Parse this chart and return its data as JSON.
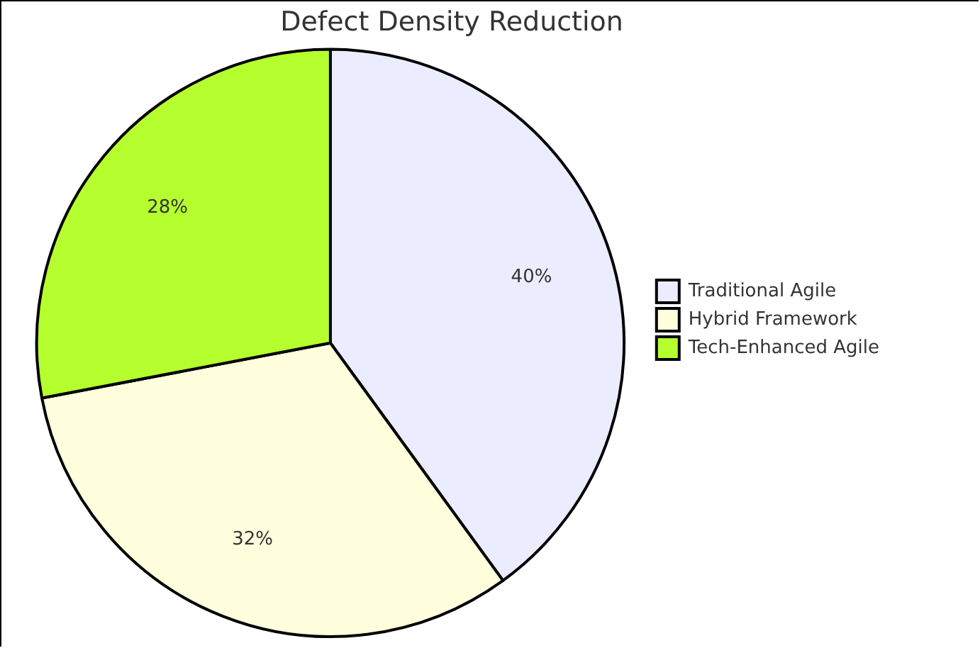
{
  "chart_data": {
    "type": "pie",
    "title": "Defect Density Reduction",
    "categories": [
      "Traditional Agile",
      "Hybrid Framework",
      "Tech-Enhanced Agile"
    ],
    "values": [
      40,
      32,
      28
    ],
    "value_labels": [
      "40%",
      "32%",
      "28%"
    ],
    "colors": [
      "#ececff",
      "#ffffde",
      "#b5ff2f"
    ],
    "legend": "right"
  }
}
